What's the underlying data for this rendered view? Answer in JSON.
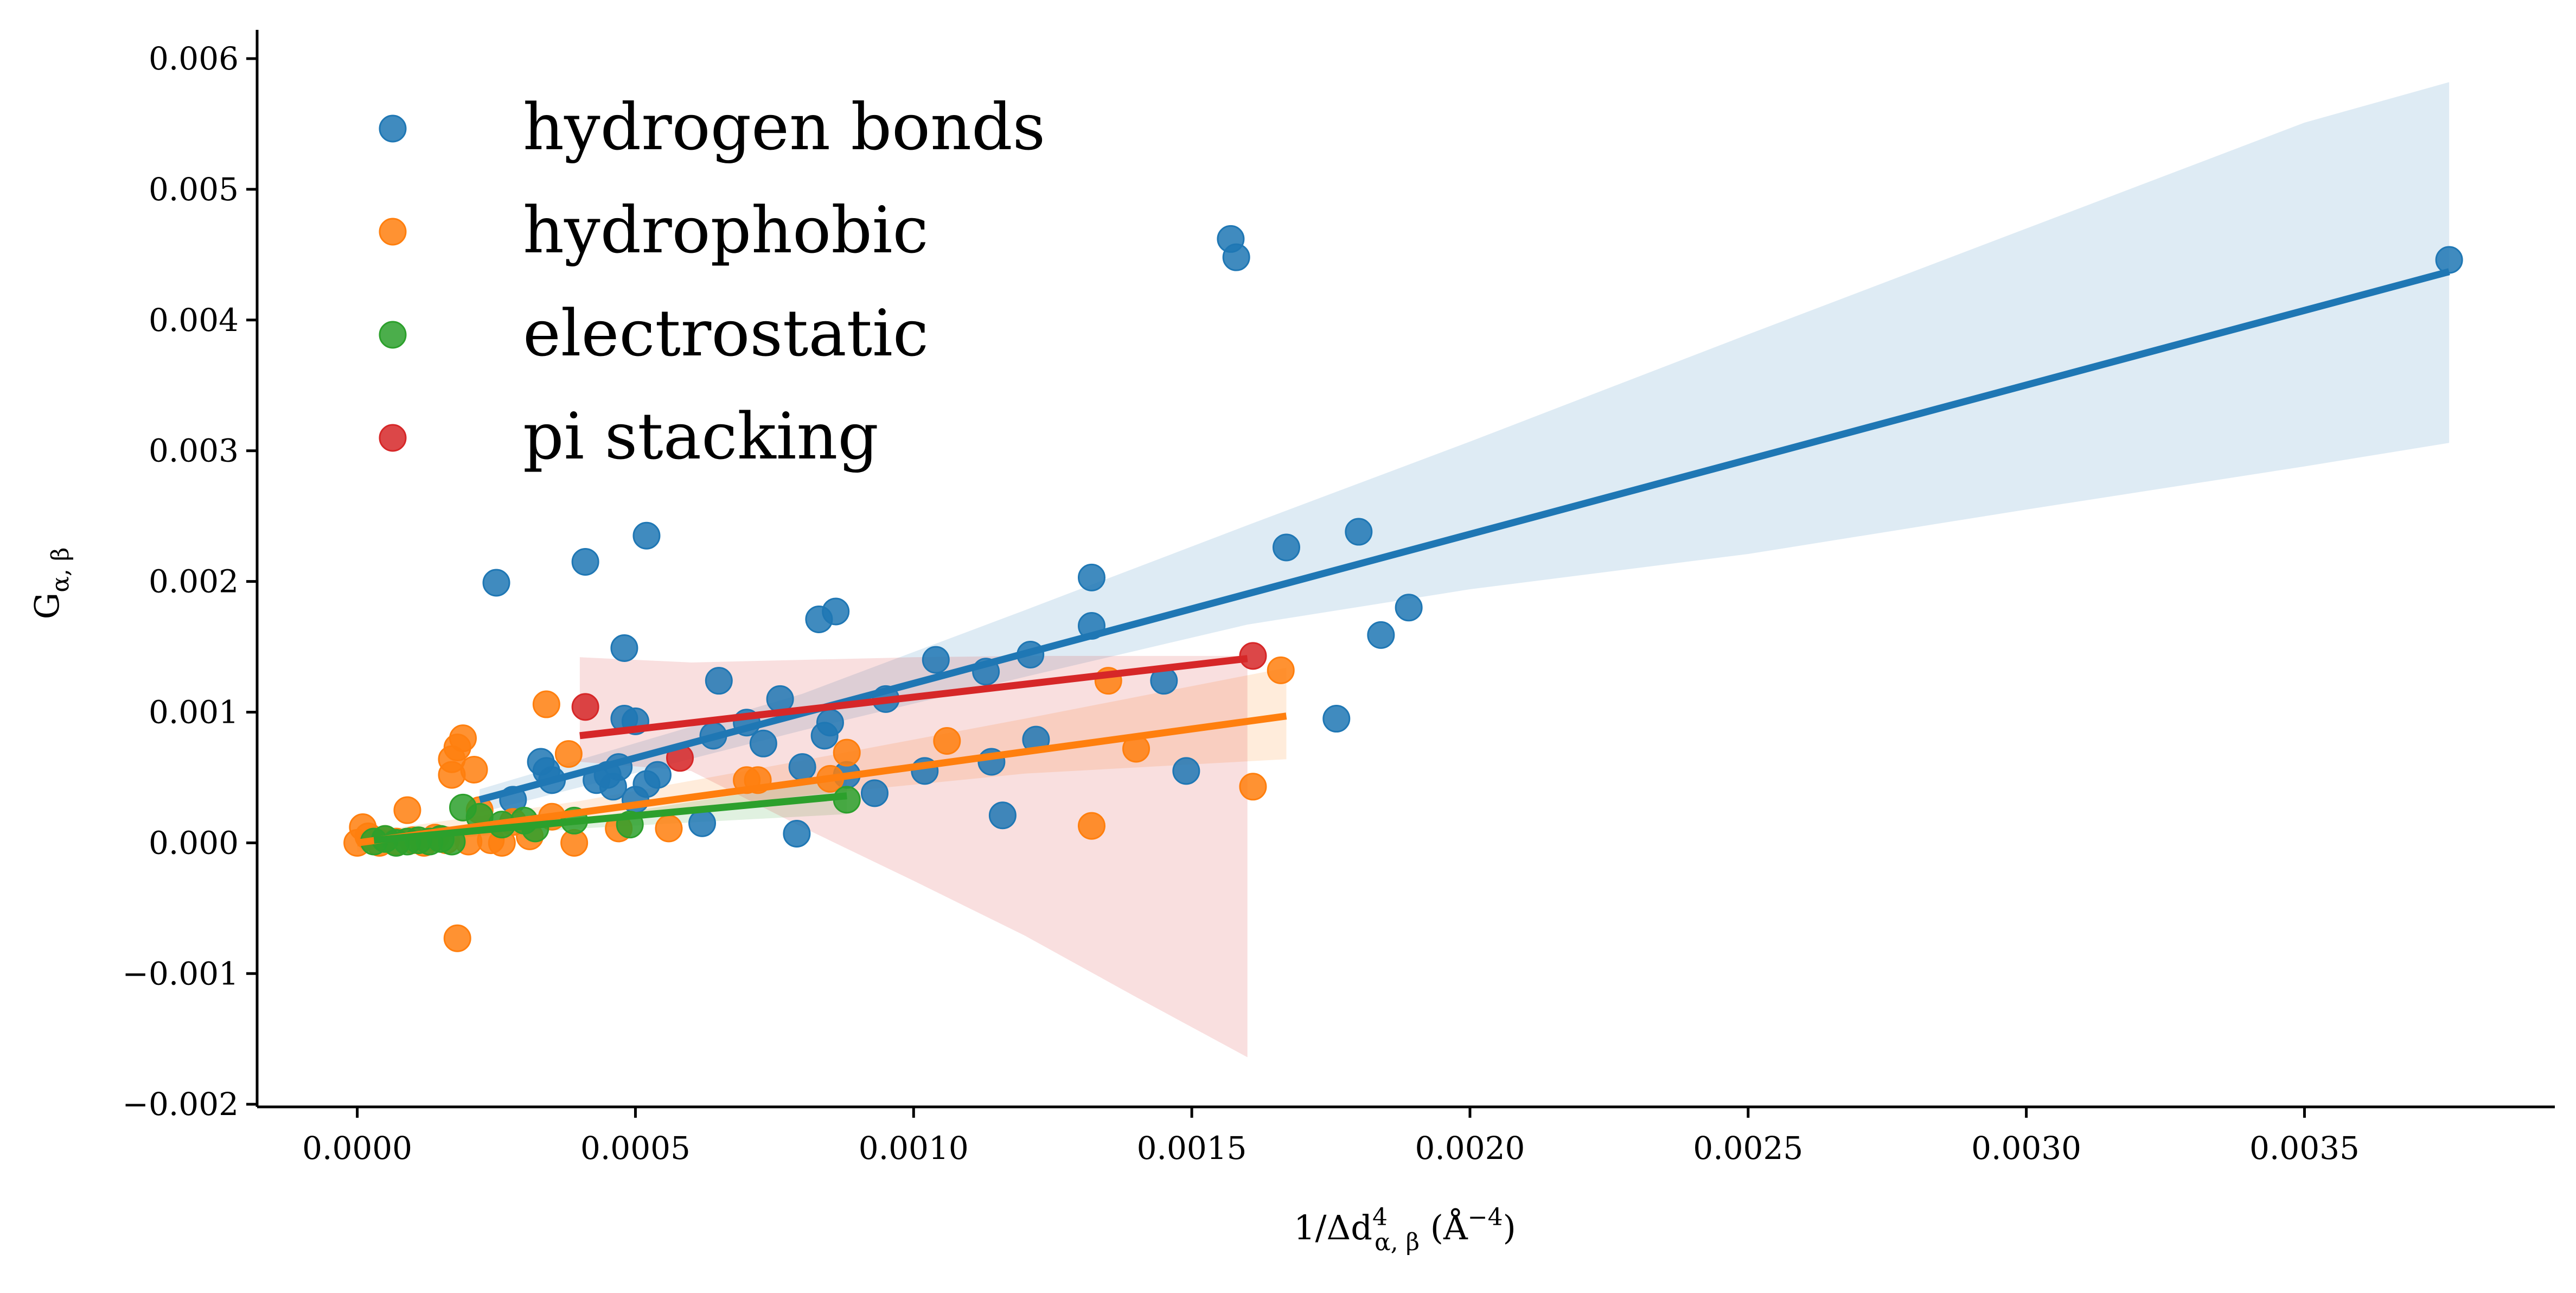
{
  "chart_data": {
    "type": "scatter",
    "title": "",
    "xlabel": "1/Δd",
    "xlabel_sup": "4",
    "xlabel_sub": "α, β",
    "xlabel_unit": " (Å",
    "xlabel_unit_sup": "−4",
    "xlabel_unit_end": ")",
    "ylabel": "G",
    "ylabel_sub": "α, β",
    "xlim": [
      -0.00018,
      0.00395
    ],
    "ylim": [
      -0.00202,
      0.00622
    ],
    "x_ticks": [
      0.0,
      0.0005,
      0.001,
      0.0015,
      0.002,
      0.0025,
      0.003,
      0.0035
    ],
    "x_tick_labels": [
      "0.0000",
      "0.0005",
      "0.0010",
      "0.0015",
      "0.0020",
      "0.0025",
      "0.0030",
      "0.0035"
    ],
    "y_ticks": [
      -0.002,
      -0.001,
      0.0,
      0.001,
      0.002,
      0.003,
      0.004,
      0.005,
      0.006
    ],
    "y_tick_labels": [
      "−0.002",
      "−0.001",
      "0.000",
      "0.001",
      "0.002",
      "0.003",
      "0.004",
      "0.005",
      "0.006"
    ],
    "grid": false,
    "legend_position": "top-left",
    "series": [
      {
        "name": "hydrogen bonds",
        "color": "#1f77b4",
        "fit": {
          "x0": 0.00022,
          "y0": 0.00033,
          "x1": 0.00376,
          "y1": 0.00437
        },
        "band": {
          "upper": [
            [
              0.00022,
              0.00041
            ],
            [
              0.0008,
              0.00114
            ],
            [
              0.0012,
              0.00178
            ],
            [
              0.0016,
              0.00243
            ],
            [
              0.002,
              0.00307
            ],
            [
              0.0025,
              0.00389
            ],
            [
              0.003,
              0.0047
            ],
            [
              0.0035,
              0.00551
            ],
            [
              0.00376,
              0.00582
            ]
          ],
          "lower": [
            [
              0.00022,
              0.00023
            ],
            [
              0.0008,
              0.00086
            ],
            [
              0.0012,
              0.00127
            ],
            [
              0.0016,
              0.00167
            ],
            [
              0.002,
              0.00194
            ],
            [
              0.0025,
              0.00221
            ],
            [
              0.003,
              0.00255
            ],
            [
              0.0035,
              0.00288
            ],
            [
              0.00376,
              0.00306
            ]
          ]
        },
        "points": [
          [
            0.00025,
            0.00199
          ],
          [
            0.00028,
            0.00033
          ],
          [
            0.00033,
            0.00062
          ],
          [
            0.00034,
            0.00055
          ],
          [
            0.00035,
            0.00048
          ],
          [
            0.00041,
            0.00215
          ],
          [
            0.00043,
            0.00048
          ],
          [
            0.00045,
            0.00052
          ],
          [
            0.00046,
            0.00043
          ],
          [
            0.00047,
            0.00058
          ],
          [
            0.00048,
            0.00149
          ],
          [
            0.00048,
            0.00095
          ],
          [
            0.0005,
            0.00093
          ],
          [
            0.0005,
            0.00033
          ],
          [
            0.00052,
            0.00235
          ],
          [
            0.00052,
            0.00045
          ],
          [
            0.00054,
            0.00052
          ],
          [
            0.00062,
            0.00015
          ],
          [
            0.00064,
            0.00082
          ],
          [
            0.00065,
            0.00124
          ],
          [
            0.0007,
            0.00092
          ],
          [
            0.00073,
            0.00076
          ],
          [
            0.00076,
            0.0011
          ],
          [
            0.00079,
            7e-05
          ],
          [
            0.0008,
            0.00058
          ],
          [
            0.00083,
            0.00171
          ],
          [
            0.00084,
            0.00082
          ],
          [
            0.00085,
            0.00092
          ],
          [
            0.00086,
            0.00177
          ],
          [
            0.00088,
            0.00052
          ],
          [
            0.00093,
            0.00038
          ],
          [
            0.00095,
            0.0011
          ],
          [
            0.00102,
            0.00055
          ],
          [
            0.00104,
            0.0014
          ],
          [
            0.00113,
            0.00131
          ],
          [
            0.00114,
            0.00062
          ],
          [
            0.00116,
            0.00021
          ],
          [
            0.00121,
            0.00144
          ],
          [
            0.00122,
            0.00079
          ],
          [
            0.00132,
            0.00203
          ],
          [
            0.00132,
            0.00166
          ],
          [
            0.00145,
            0.00124
          ],
          [
            0.00149,
            0.00055
          ],
          [
            0.00157,
            0.00462
          ],
          [
            0.00158,
            0.00448
          ],
          [
            0.00167,
            0.00226
          ],
          [
            0.00176,
            0.00095
          ],
          [
            0.0018,
            0.00238
          ],
          [
            0.00184,
            0.00159
          ],
          [
            0.00189,
            0.0018
          ],
          [
            0.00376,
            0.00446
          ]
        ]
      },
      {
        "name": "hydrophobic",
        "color": "#ff7f0e",
        "fit": {
          "x0": 0.0,
          "y0": 0.0,
          "x1": 0.00167,
          "y1": 0.00097
        },
        "band": {
          "upper": [
            [
              0.0,
              7e-05
            ],
            [
              0.0004,
              0.00032
            ],
            [
              0.0008,
              0.00063
            ],
            [
              0.0012,
              0.00095
            ],
            [
              0.00167,
              0.00134
            ]
          ],
          "lower": [
            [
              0.0,
              -7e-05
            ],
            [
              0.0004,
              0.00016
            ],
            [
              0.0008,
              0.00036
            ],
            [
              0.0012,
              0.00053
            ],
            [
              0.00167,
              0.00064
            ]
          ]
        },
        "points": [
          [
            0.0,
            0.0
          ],
          [
            1e-05,
            0.00012
          ],
          [
            2e-05,
            5e-05
          ],
          [
            4e-05,
            0.0
          ],
          [
            5e-05,
            3e-05
          ],
          [
            7e-05,
            1e-05
          ],
          [
            9e-05,
            0.00025
          ],
          [
            0.0001,
            2e-05
          ],
          [
            0.00012,
            0.0
          ],
          [
            0.00014,
            4e-05
          ],
          [
            0.00016,
            2e-05
          ],
          [
            0.00017,
            0.00052
          ],
          [
            0.00017,
            0.00064
          ],
          [
            0.00018,
            0.00073
          ],
          [
            0.00018,
            -0.00073
          ],
          [
            0.00019,
            0.0008
          ],
          [
            0.0002,
            1e-05
          ],
          [
            0.00021,
            0.00056
          ],
          [
            0.00022,
            0.00025
          ],
          [
            0.00024,
            2e-05
          ],
          [
            0.00026,
            0.0
          ],
          [
            0.00028,
            0.00016
          ],
          [
            0.00031,
            5e-05
          ],
          [
            0.00034,
            0.00106
          ],
          [
            0.00035,
            0.0002
          ],
          [
            0.00038,
            0.00068
          ],
          [
            0.00039,
            0.0
          ],
          [
            0.00047,
            0.00011
          ],
          [
            0.00056,
            0.00011
          ],
          [
            0.0007,
            0.00048
          ],
          [
            0.00072,
            0.00048
          ],
          [
            0.00085,
            0.00049
          ],
          [
            0.00088,
            0.00069
          ],
          [
            0.00106,
            0.00078
          ],
          [
            0.00132,
            0.00013
          ],
          [
            0.00135,
            0.00124
          ],
          [
            0.0014,
            0.00072
          ],
          [
            0.00161,
            0.00043
          ],
          [
            0.00166,
            0.00132
          ]
        ]
      },
      {
        "name": "electrostatic",
        "color": "#2ca02c",
        "fit": {
          "x0": 3e-05,
          "y0": 2e-05,
          "x1": 0.00088,
          "y1": 0.00036
        },
        "band": {
          "upper": [
            [
              3e-05,
              5e-05
            ],
            [
              0.0004,
              0.00018
            ],
            [
              0.00088,
              0.0005
            ]
          ],
          "lower": [
            [
              3e-05,
              -1e-05
            ],
            [
              0.0004,
              0.00011
            ],
            [
              0.00088,
              0.00022
            ]
          ]
        },
        "points": [
          [
            3e-05,
            1e-05
          ],
          [
            5e-05,
            3e-05
          ],
          [
            7e-05,
            0.0
          ],
          [
            9e-05,
            1e-05
          ],
          [
            0.00011,
            2e-05
          ],
          [
            0.00013,
            1e-05
          ],
          [
            0.00015,
            3e-05
          ],
          [
            0.00017,
            1e-05
          ],
          [
            0.00019,
            0.00027
          ],
          [
            0.00022,
            0.0002
          ],
          [
            0.00026,
            0.00014
          ],
          [
            0.0003,
            0.00017
          ],
          [
            0.00032,
            0.00011
          ],
          [
            0.00039,
            0.00017
          ],
          [
            0.00049,
            0.00014
          ],
          [
            0.00088,
            0.00033
          ]
        ]
      },
      {
        "name": "pi stacking",
        "color": "#d62728",
        "fit": {
          "x0": 0.0004,
          "y0": 0.00082,
          "x1": 0.0016,
          "y1": 0.00141
        },
        "band": {
          "upper": [
            [
              0.0004,
              0.00142
            ],
            [
              0.0006,
              0.00138
            ],
            [
              0.0008,
              0.0014
            ],
            [
              0.001,
              0.00142
            ],
            [
              0.0012,
              0.00143
            ],
            [
              0.0014,
              0.00143
            ],
            [
              0.0016,
              0.00143
            ]
          ],
          "lower": [
            [
              0.0004,
              0.00062
            ],
            [
              0.0006,
              0.00055
            ],
            [
              0.0008,
              0.00012
            ],
            [
              0.001,
              -0.00029
            ],
            [
              0.0012,
              -0.00071
            ],
            [
              0.0014,
              -0.00118
            ],
            [
              0.0016,
              -0.00164
            ]
          ]
        },
        "points": [
          [
            0.00041,
            0.00104
          ],
          [
            0.00058,
            0.00065
          ],
          [
            0.00161,
            0.00143
          ]
        ]
      }
    ]
  }
}
